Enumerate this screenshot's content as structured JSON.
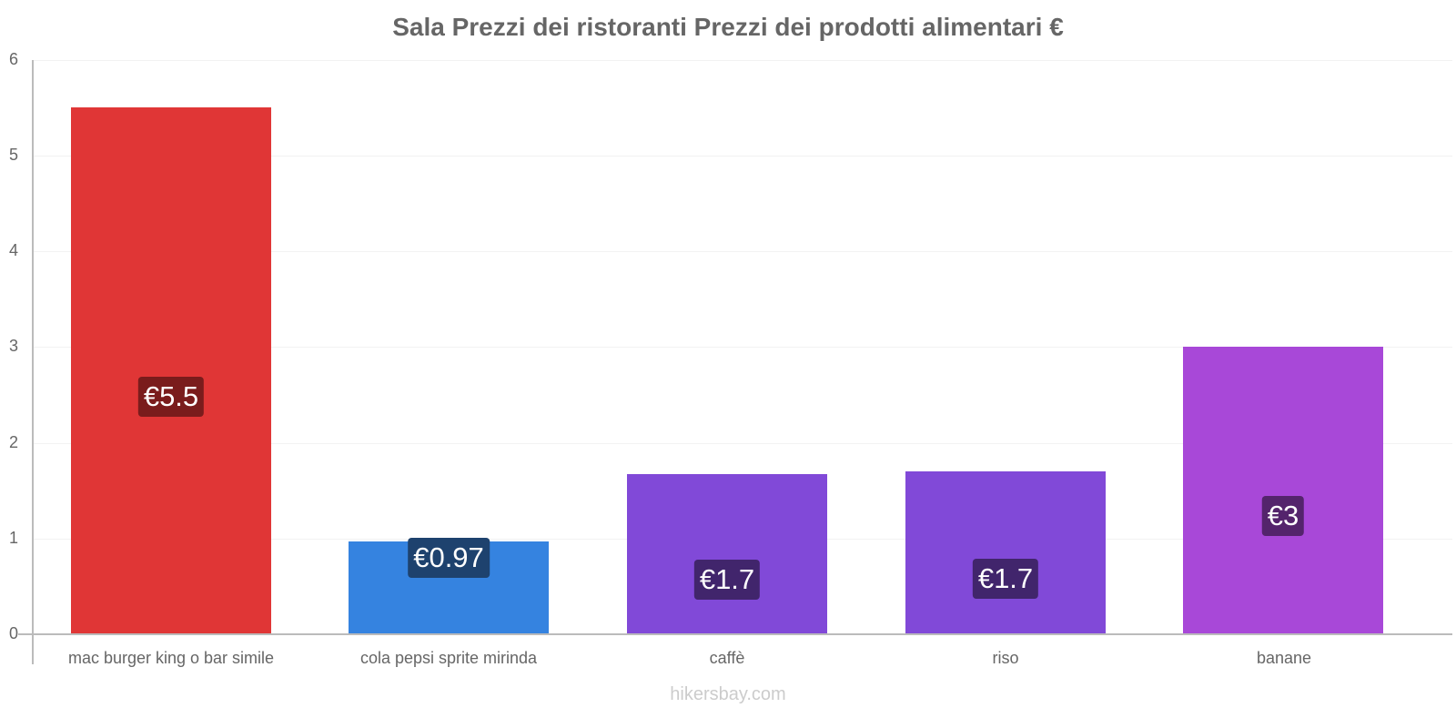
{
  "chart": {
    "title": "Sala Prezzi dei ristoranti Prezzi dei prodotti alimentari €",
    "footer": "hikersbay.com",
    "y_ticks": [
      "0",
      "1",
      "2",
      "3",
      "4",
      "5",
      "6"
    ],
    "bars": [
      {
        "category": "mac burger king o bar simile",
        "value": 5.5,
        "label": "€5.5",
        "color": "#e03636",
        "label_bg": "#7a1c1c"
      },
      {
        "category": "cola pepsi sprite mirinda",
        "value": 0.97,
        "label": "€0.97",
        "color": "#3583e0",
        "label_bg": "#1e426e"
      },
      {
        "category": "caffè",
        "value": 1.67,
        "label": "€1.7",
        "color": "#8149d8",
        "label_bg": "#41256c"
      },
      {
        "category": "riso",
        "value": 1.7,
        "label": "€1.7",
        "color": "#8149d8",
        "label_bg": "#41256c"
      },
      {
        "category": "banane",
        "value": 3.0,
        "label": "€3",
        "color": "#a848d8",
        "label_bg": "#54246c"
      }
    ]
  },
  "chart_data": {
    "type": "bar",
    "title": "Sala Prezzi dei ristoranti Prezzi dei prodotti alimentari €",
    "categories": [
      "mac burger king o bar simile",
      "cola pepsi sprite mirinda",
      "caffè",
      "riso",
      "banane"
    ],
    "values": [
      5.5,
      0.97,
      1.67,
      1.7,
      3.0
    ],
    "data_labels": [
      "€5.5",
      "€0.97",
      "€1.7",
      "€1.7",
      "€3"
    ],
    "colors": [
      "#e03636",
      "#3583e0",
      "#8149d8",
      "#8149d8",
      "#a848d8"
    ],
    "xlabel": "",
    "ylabel": "",
    "ylim": [
      0,
      6
    ],
    "yticks": [
      0,
      1,
      2,
      3,
      4,
      5,
      6
    ],
    "grid": true,
    "legend": "none",
    "source": "hikersbay.com"
  }
}
